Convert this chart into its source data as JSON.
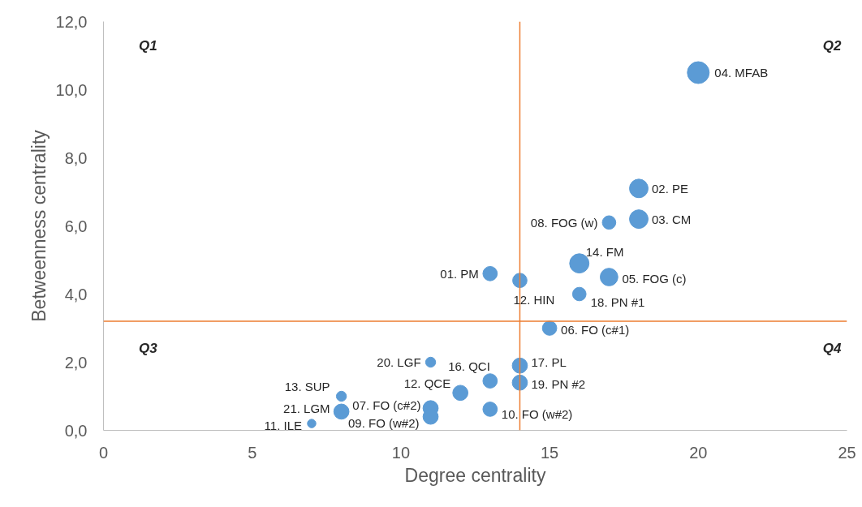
{
  "chart_data": {
    "type": "bubble",
    "xlabel": "Degree centrality",
    "ylabel": "Betweenness centrality",
    "xlim": [
      0,
      25
    ],
    "xticks": [
      0,
      5,
      10,
      15,
      20,
      25
    ],
    "ylim": [
      0,
      12
    ],
    "yticks": [
      {
        "value": 0,
        "label": "0,0"
      },
      {
        "value": 2,
        "label": "2,0"
      },
      {
        "value": 4,
        "label": "4,0"
      },
      {
        "value": 6,
        "label": "6,0"
      },
      {
        "value": 8,
        "label": "8,0"
      },
      {
        "value": 10,
        "label": "10,0"
      },
      {
        "value": 12,
        "label": "12,0"
      }
    ],
    "grid": false,
    "x": [
      20,
      18,
      18,
      17,
      16,
      17,
      13,
      14,
      16,
      15,
      11,
      14,
      13,
      14,
      12,
      8,
      8,
      11,
      11,
      13,
      7
    ],
    "series": [
      {
        "color": "#5b9bd5",
        "values": [
          10.5,
          7.1,
          6.2,
          6.1,
          4.9,
          4.5,
          4.6,
          4.4,
          4.0,
          3.0,
          2.0,
          1.9,
          1.45,
          1.4,
          1.1,
          1.0,
          0.55,
          0.65,
          0.4,
          0.62,
          0.2
        ],
        "sizes": [
          1,
          0.72,
          0.72,
          0.38,
          0.78,
          0.65,
          0.43,
          0.43,
          0.38,
          0.43,
          0.21,
          0.48,
          0.43,
          0.48,
          0.48,
          0.21,
          0.48,
          0.48,
          0.48,
          0.43,
          0.15
        ]
      }
    ],
    "ref_lines": [
      {
        "axis": "x",
        "value": 14,
        "color": "#ed7d31"
      },
      {
        "axis": "y",
        "value": 3.2,
        "color": "#ed7d31"
      }
    ],
    "annotations": [
      {
        "text": "04. MFAB",
        "x": 20,
        "y": 10.5
      },
      {
        "text": "02. PE",
        "x": 18,
        "y": 7.1
      },
      {
        "text": "03. CM",
        "x": 18,
        "y": 6.2
      },
      {
        "text": "08. FOG (w)",
        "x": 17,
        "y": 6.1
      },
      {
        "text": "14. FM",
        "x": 16,
        "y": 4.9
      },
      {
        "text": "05. FOG (c)",
        "x": 17,
        "y": 4.5
      },
      {
        "text": "01. PM",
        "x": 13,
        "y": 4.6
      },
      {
        "text": "12. HIN",
        "x": 14,
        "y": 4.4
      },
      {
        "text": "18. PN #1",
        "x": 16,
        "y": 4.0
      },
      {
        "text": "06. FO (c#1)",
        "x": 15,
        "y": 3.0
      },
      {
        "text": "20. LGF",
        "x": 11,
        "y": 2.0
      },
      {
        "text": "17. PL",
        "x": 14,
        "y": 1.9
      },
      {
        "text": "16. QCI",
        "x": 13,
        "y": 1.45
      },
      {
        "text": "19. PN #2",
        "x": 14,
        "y": 1.4
      },
      {
        "text": "12. QCE",
        "x": 12,
        "y": 1.1
      },
      {
        "text": "13. SUP",
        "x": 8,
        "y": 1.0
      },
      {
        "text": "21. LGM",
        "x": 8,
        "y": 0.55
      },
      {
        "text": "07. FO (c#2)",
        "x": 11,
        "y": 0.65
      },
      {
        "text": "09. FO (w#2)",
        "x": 11,
        "y": 0.4
      },
      {
        "text": "10. FO (w#2)",
        "x": 13,
        "y": 0.62
      },
      {
        "text": "11. ILE",
        "x": 7,
        "y": 0.2
      },
      "Q1",
      "Q2",
      "Q3",
      "Q4"
    ]
  }
}
